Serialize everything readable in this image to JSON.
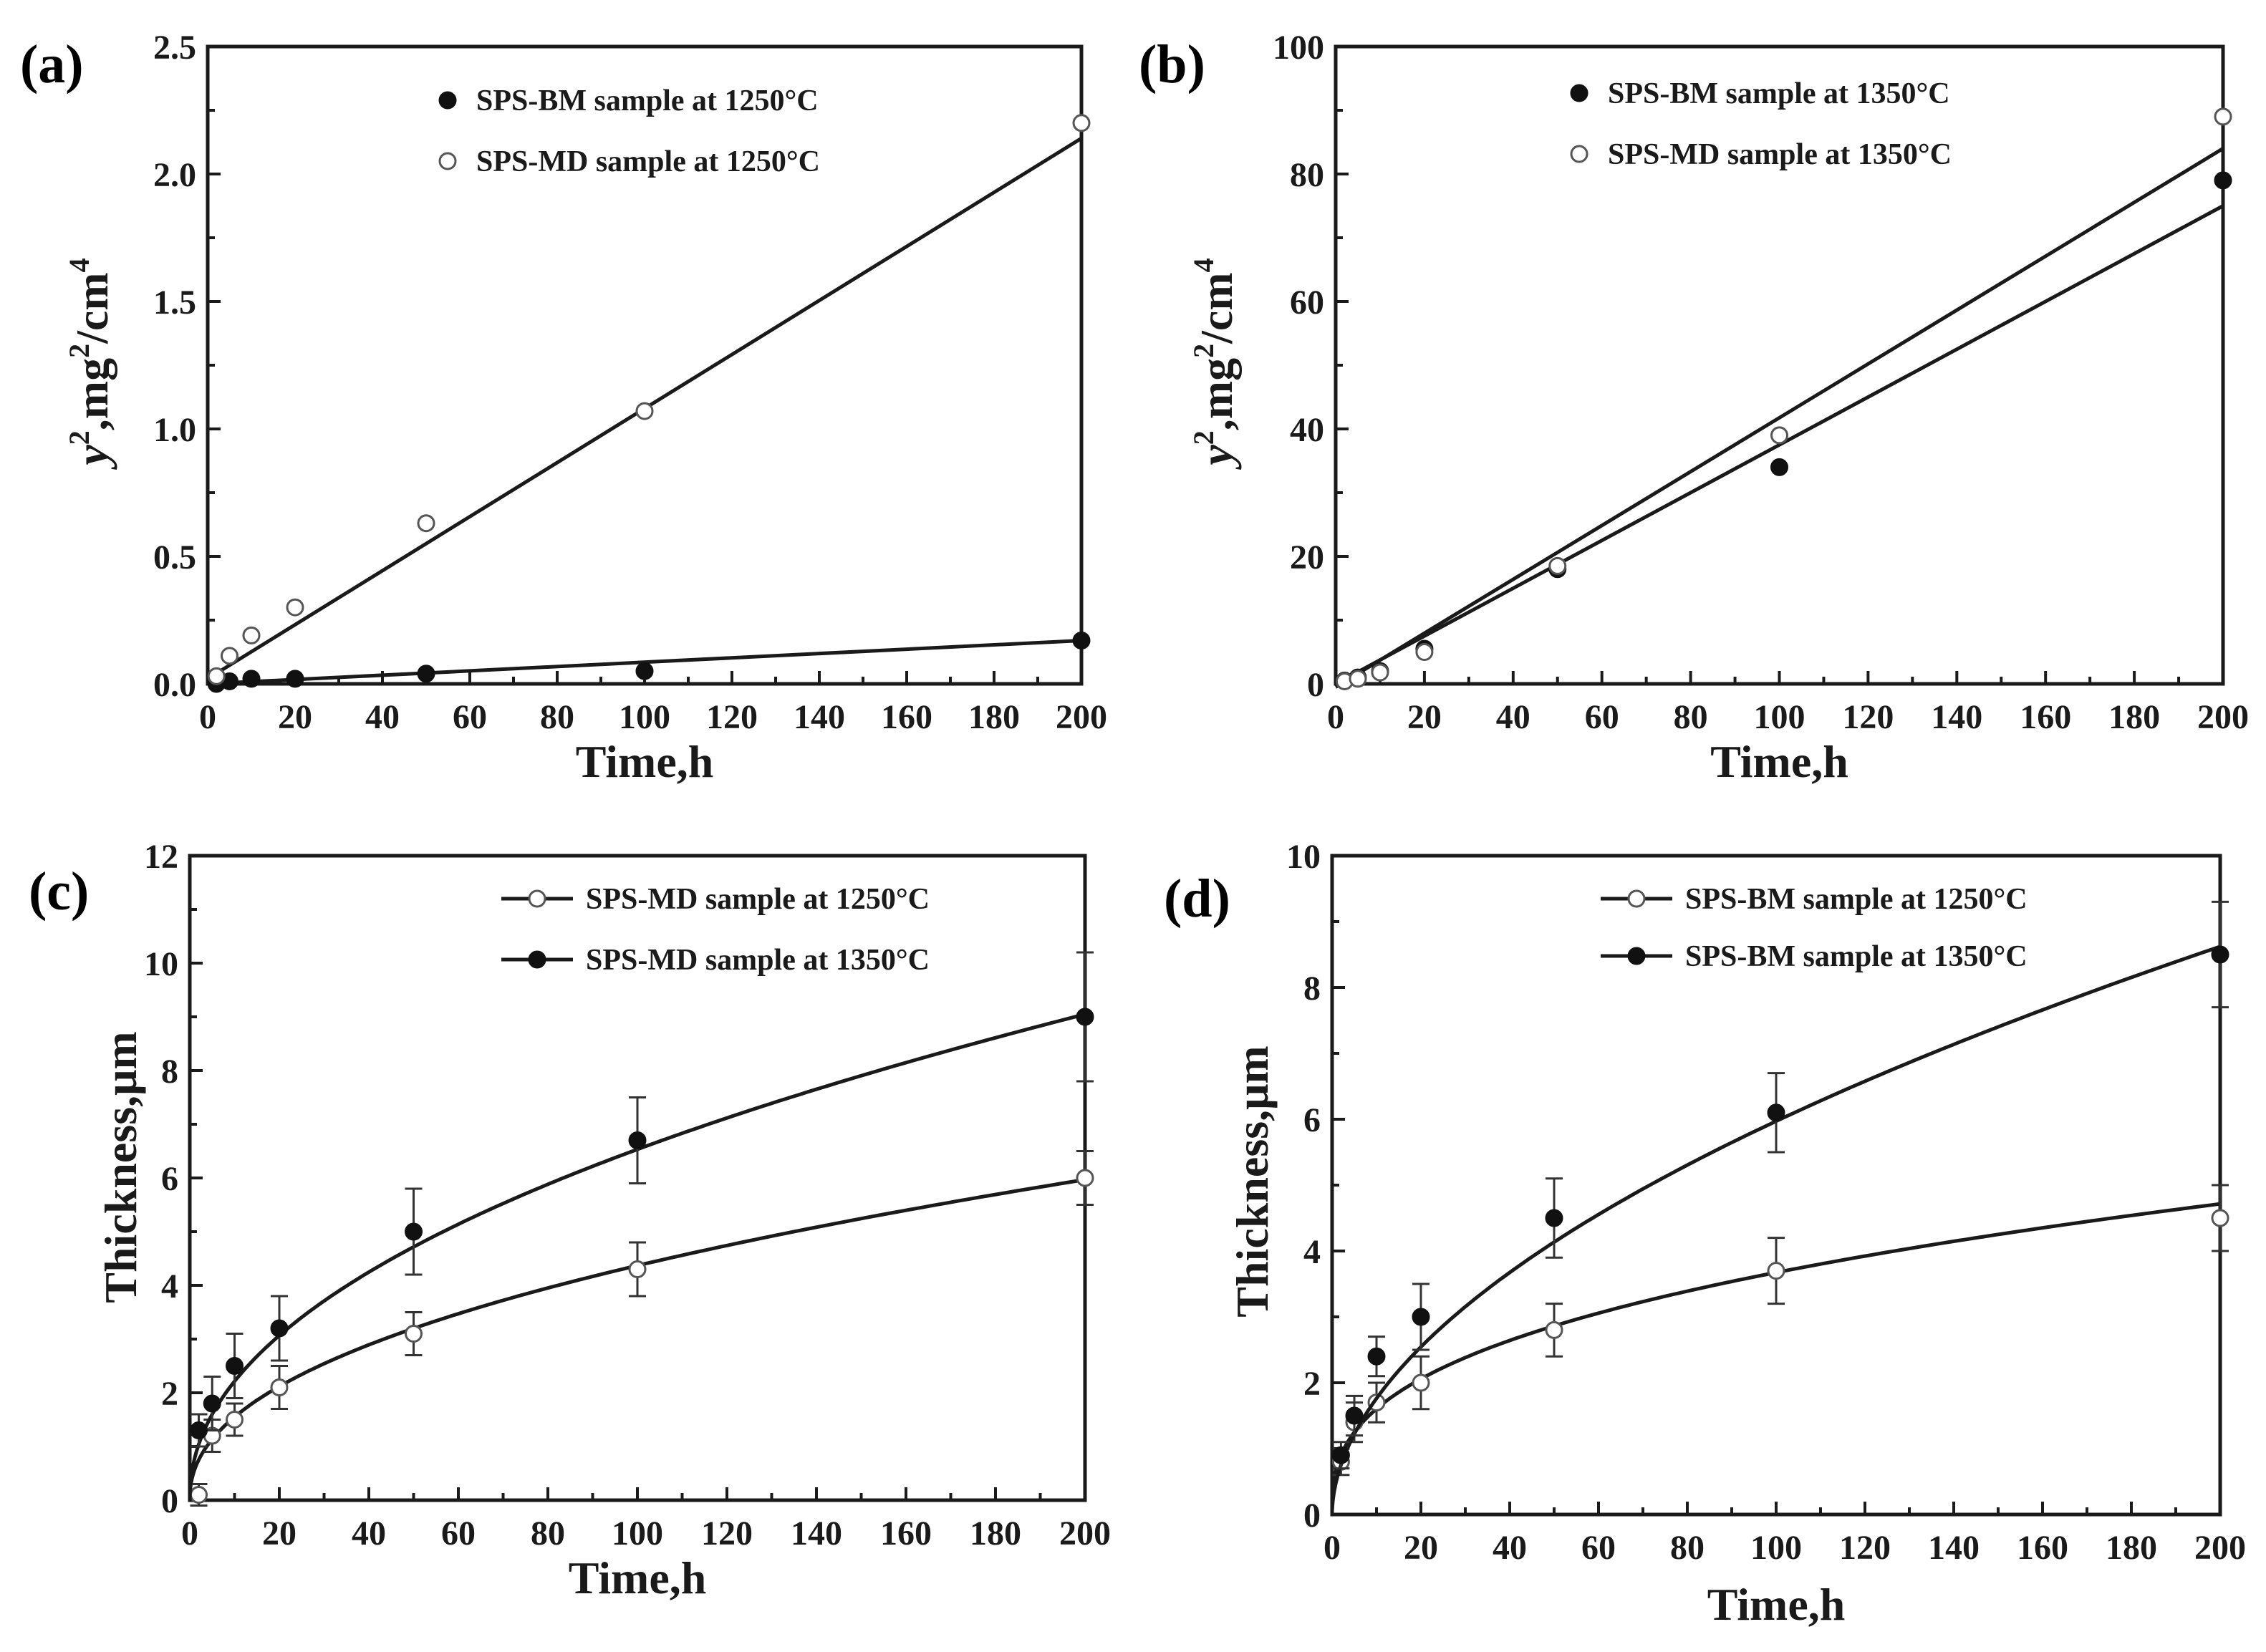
{
  "figure": {
    "panel_labels": [
      "(a)",
      "(b)",
      "(c)",
      "(d)"
    ]
  },
  "chart_data": [
    {
      "type": "scatter",
      "panel": "(a)",
      "xlabel": "Time,h",
      "ylabel": "y2,mg2/cm4",
      "xlim": [
        0,
        200
      ],
      "ylim": [
        0,
        2.5
      ],
      "xticks": [
        0,
        20,
        40,
        60,
        80,
        100,
        120,
        140,
        160,
        180,
        200
      ],
      "yticks": [
        0.0,
        0.5,
        1.0,
        1.5,
        2.0,
        2.5
      ],
      "ytick_labels": [
        "0.0",
        "0.5",
        "1.0",
        "1.5",
        "2.0",
        "2.5"
      ],
      "legend_position": "top-right",
      "series": [
        {
          "name": "SPS-BM sample at 1250°C",
          "marker": "filled-circle",
          "x": [
            2,
            5,
            10,
            20,
            50,
            100,
            200
          ],
          "y": [
            0.0,
            0.01,
            0.02,
            0.02,
            0.04,
            0.05,
            0.17
          ],
          "fit": {
            "kind": "linear",
            "x": [
              0,
              200
            ],
            "y": [
              0.0,
              0.17
            ]
          }
        },
        {
          "name": "SPS-MD sample at 1250°C",
          "marker": "open-circle",
          "x": [
            2,
            5,
            10,
            20,
            50,
            100,
            200
          ],
          "y": [
            0.03,
            0.11,
            0.19,
            0.3,
            0.63,
            1.07,
            2.2
          ],
          "fit": {
            "kind": "linear",
            "x": [
              0,
              200
            ],
            "y": [
              0.02,
              2.14
            ]
          }
        }
      ]
    },
    {
      "type": "scatter",
      "panel": "(b)",
      "xlabel": "Time,h",
      "ylabel": "y2,mg2/cm4",
      "xlim": [
        0,
        200
      ],
      "ylim": [
        0,
        100
      ],
      "xticks": [
        0,
        20,
        40,
        60,
        80,
        100,
        120,
        140,
        160,
        180,
        200
      ],
      "yticks": [
        0,
        20,
        40,
        60,
        80,
        100
      ],
      "ytick_labels": [
        "0",
        "20",
        "40",
        "60",
        "80",
        "100"
      ],
      "legend_position": "top-right",
      "series": [
        {
          "name": "SPS-BM sample at 1350°C",
          "marker": "filled-circle",
          "x": [
            2,
            5,
            10,
            20,
            50,
            100,
            200
          ],
          "y": [
            0.5,
            1.0,
            2.0,
            5.5,
            18.0,
            34.0,
            79.0
          ],
          "fit": {
            "kind": "linear",
            "x": [
              0,
              200
            ],
            "y": [
              0.0,
              75.0
            ]
          }
        },
        {
          "name": "SPS-MD sample at 1350°C",
          "marker": "open-circle",
          "x": [
            2,
            5,
            10,
            20,
            50,
            100,
            200
          ],
          "y": [
            0.4,
            0.8,
            1.8,
            5.0,
            18.5,
            39.0,
            89.0
          ],
          "fit": {
            "kind": "linear",
            "x": [
              0,
              200
            ],
            "y": [
              -0.5,
              84.0
            ]
          }
        }
      ]
    },
    {
      "type": "line",
      "panel": "(c)",
      "xlabel": "Time,h",
      "ylabel": "Thickness,μm",
      "xlim": [
        0,
        200
      ],
      "ylim": [
        0,
        12
      ],
      "xticks": [
        0,
        20,
        40,
        60,
        80,
        100,
        120,
        140,
        160,
        180,
        200
      ],
      "yticks": [
        0,
        2,
        4,
        6,
        8,
        10,
        12
      ],
      "ytick_labels": [
        "0",
        "2",
        "4",
        "6",
        "8",
        "10",
        "12"
      ],
      "legend_position": "top-right",
      "series": [
        {
          "name": "SPS-MD sample at 1250°C",
          "marker": "open-circle",
          "x": [
            2,
            5,
            10,
            20,
            50,
            100,
            200
          ],
          "y": [
            0.1,
            1.2,
            1.5,
            2.1,
            3.1,
            4.3,
            6.0
          ],
          "err": [
            0.2,
            0.3,
            0.3,
            0.4,
            0.4,
            0.5,
            0.5
          ],
          "fit": {
            "kind": "power",
            "a": 0.55,
            "b": 0.45
          }
        },
        {
          "name": "SPS-MD sample at 1350°C",
          "marker": "filled-circle",
          "x": [
            2,
            5,
            10,
            20,
            50,
            100,
            200
          ],
          "y": [
            1.3,
            1.8,
            2.5,
            3.2,
            5.0,
            6.7,
            9.0
          ],
          "err": [
            0.3,
            0.5,
            0.6,
            0.6,
            0.8,
            0.8,
            1.2
          ],
          "fit": {
            "kind": "power",
            "a": 0.75,
            "b": 0.47
          }
        }
      ]
    },
    {
      "type": "line",
      "panel": "(d)",
      "xlabel": "Time,h",
      "ylabel": "Thickness,μm",
      "xlim": [
        0,
        200
      ],
      "ylim": [
        0,
        10
      ],
      "xticks": [
        0,
        20,
        40,
        60,
        80,
        100,
        120,
        140,
        160,
        180,
        200
      ],
      "yticks": [
        0,
        2,
        4,
        6,
        8,
        10
      ],
      "ytick_labels": [
        "0",
        "2",
        "4",
        "6",
        "8",
        "10"
      ],
      "legend_position": "top-right",
      "series": [
        {
          "name": "SPS-BM sample at 1250°C",
          "marker": "open-circle",
          "x": [
            2,
            5,
            10,
            20,
            50,
            100,
            200
          ],
          "y": [
            0.8,
            1.4,
            1.7,
            2.0,
            2.8,
            3.7,
            4.5
          ],
          "err": [
            0.2,
            0.3,
            0.3,
            0.4,
            0.4,
            0.5,
            0.5
          ],
          "fit": {
            "kind": "power",
            "a": 0.7,
            "b": 0.36
          }
        },
        {
          "name": "SPS-BM sample at 1350°C",
          "marker": "filled-circle",
          "x": [
            2,
            5,
            10,
            20,
            50,
            100,
            200
          ],
          "y": [
            0.9,
            1.5,
            2.4,
            3.0,
            4.5,
            6.1,
            8.5
          ],
          "err": [
            0.2,
            0.3,
            0.3,
            0.5,
            0.6,
            0.6,
            0.8
          ],
          "fit": {
            "kind": "power",
            "a": 0.52,
            "b": 0.53
          }
        }
      ]
    }
  ]
}
